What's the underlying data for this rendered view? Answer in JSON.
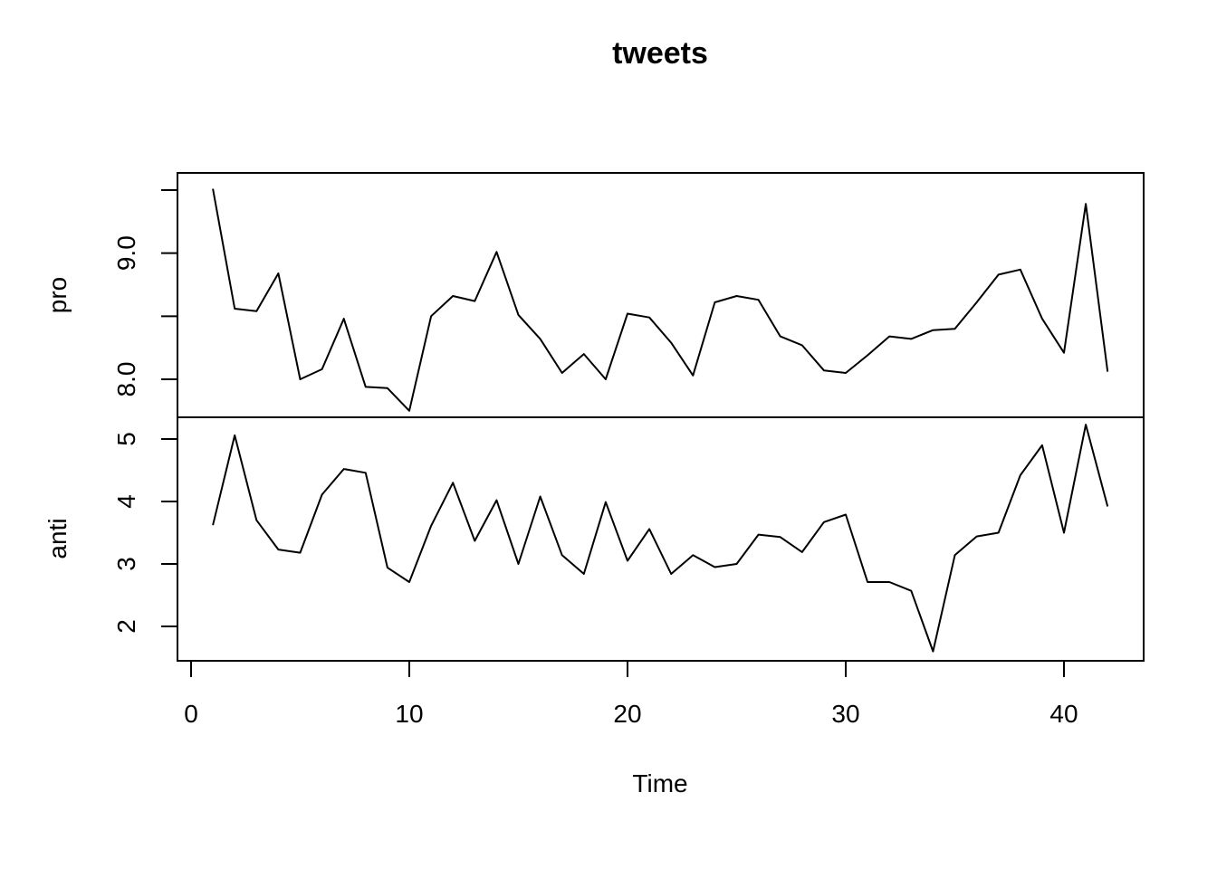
{
  "chart_data": {
    "type": "line",
    "title": "tweets",
    "xlabel": "Time",
    "x": [
      1,
      2,
      3,
      4,
      5,
      6,
      7,
      8,
      9,
      10,
      11,
      12,
      13,
      14,
      15,
      16,
      17,
      18,
      19,
      20,
      21,
      22,
      23,
      24,
      25,
      26,
      27,
      28,
      29,
      30,
      31,
      32,
      33,
      34,
      35,
      36,
      37,
      38,
      39,
      40,
      41,
      42
    ],
    "xlim": [
      0,
      42
    ],
    "x_ticks": [
      0,
      10,
      20,
      30,
      40
    ],
    "x_tick_labels": [
      "0",
      "10",
      "20",
      "30",
      "40"
    ],
    "panels": [
      {
        "ylabel": "pro",
        "ylim": [
          7.7,
          9.5
        ],
        "y_ticks": [
          8.0,
          8.5,
          9.0,
          9.5
        ],
        "y_tick_labels": [
          "8.0",
          "",
          "9.0",
          ""
        ],
        "values": [
          9.51,
          8.56,
          8.54,
          8.84,
          8.0,
          8.08,
          8.48,
          7.94,
          7.93,
          7.75,
          8.5,
          8.66,
          8.62,
          9.01,
          8.51,
          8.32,
          8.05,
          8.2,
          8.0,
          8.52,
          8.49,
          8.29,
          8.03,
          8.61,
          8.66,
          8.63,
          8.34,
          8.27,
          8.07,
          8.05,
          8.19,
          8.34,
          8.32,
          8.39,
          8.4,
          8.61,
          8.83,
          8.87,
          8.48,
          8.21,
          9.39,
          8.06
        ]
      },
      {
        "ylabel": "anti",
        "ylim": [
          1.5,
          5.3
        ],
        "y_ticks": [
          2,
          3,
          4,
          5
        ],
        "y_tick_labels": [
          "2",
          "3",
          "4",
          "5"
        ],
        "values": [
          3.62,
          5.06,
          3.7,
          3.23,
          3.18,
          4.11,
          4.52,
          4.46,
          2.94,
          2.71,
          3.61,
          4.3,
          3.37,
          4.02,
          3.0,
          4.08,
          3.14,
          2.84,
          3.99,
          3.05,
          3.56,
          2.84,
          3.14,
          2.95,
          3.0,
          3.47,
          3.43,
          3.19,
          3.67,
          3.79,
          2.71,
          2.71,
          2.57,
          1.6,
          3.14,
          3.44,
          3.5,
          4.42,
          4.9,
          3.5,
          5.23,
          3.92
        ]
      }
    ]
  }
}
